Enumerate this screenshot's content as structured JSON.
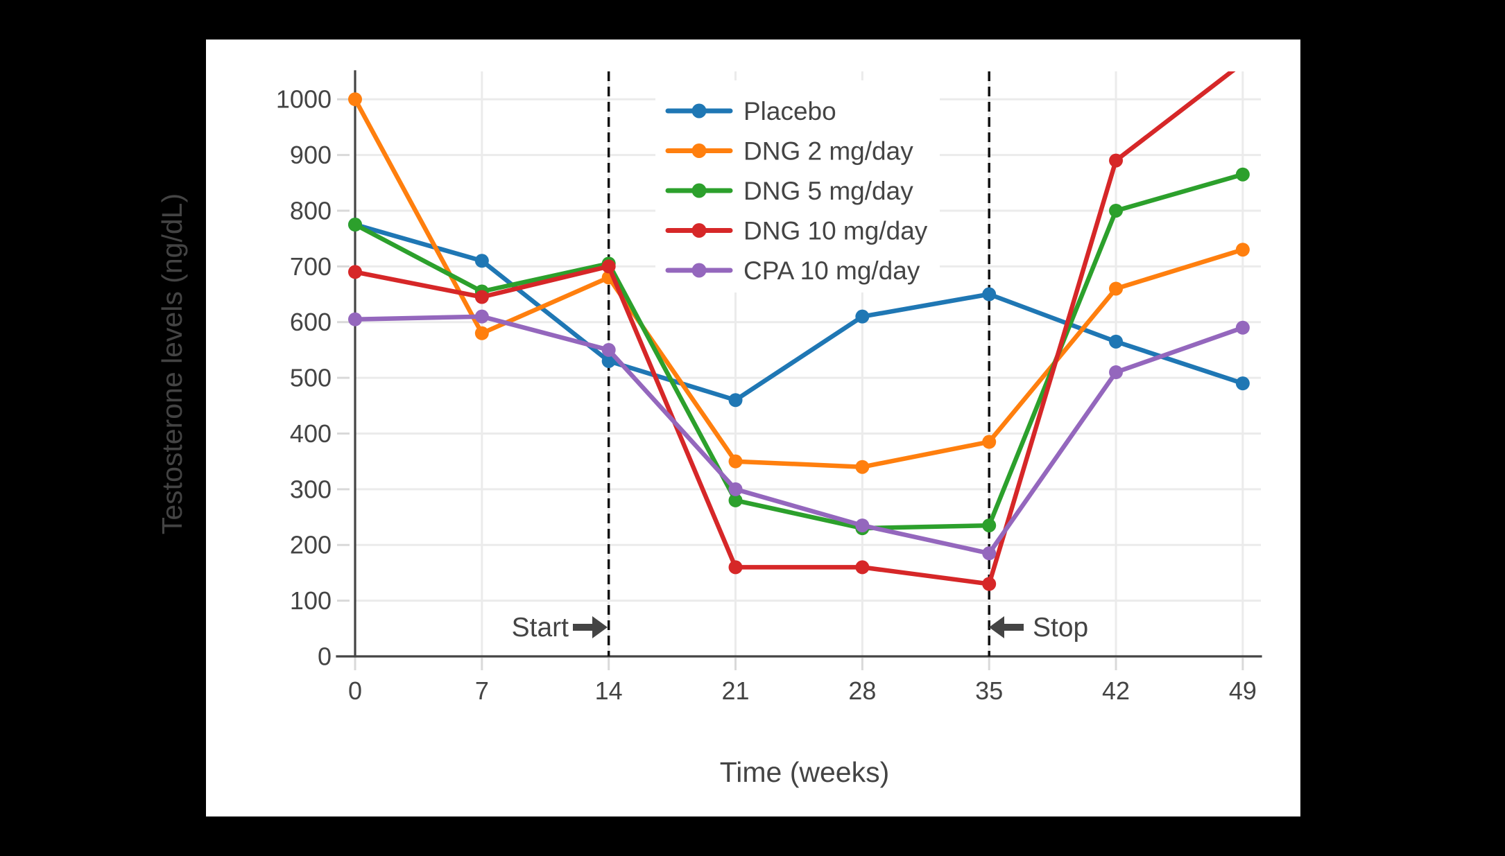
{
  "colors": {
    "background": "#000000",
    "panel": "#ffffff",
    "text": "#444444",
    "grid": "#ebebeb",
    "tick": "#d9d9d9",
    "spine": "#444444",
    "vline": "#111111",
    "annotation": "#444444"
  },
  "chart_data": {
    "type": "line",
    "title": "",
    "xlabel": "Time (weeks)",
    "ylabel": "Testosterone levels (ng/dL)",
    "x": [
      0,
      7,
      14,
      21,
      28,
      35,
      42,
      49
    ],
    "xticks": [
      0,
      7,
      14,
      21,
      28,
      35,
      42,
      49
    ],
    "yticks": [
      0,
      100,
      200,
      300,
      400,
      500,
      600,
      700,
      800,
      900,
      1000
    ],
    "xlim": [
      0,
      50
    ],
    "ylim": [
      0,
      1050
    ],
    "grid": true,
    "legend_position": "inside upper center-left",
    "series": [
      {
        "name": "Placebo",
        "color": "#1f77b4",
        "values": [
          775,
          710,
          530,
          460,
          610,
          650,
          565,
          490
        ]
      },
      {
        "name": "DNG 2 mg/day",
        "color": "#ff7f0e",
        "values": [
          1000,
          580,
          680,
          350,
          340,
          385,
          660,
          730
        ]
      },
      {
        "name": "DNG 5 mg/day",
        "color": "#2ca02c",
        "values": [
          775,
          655,
          705,
          280,
          230,
          235,
          800,
          865
        ]
      },
      {
        "name": "DNG 10 mg/day",
        "color": "#d62728",
        "values": [
          690,
          645,
          700,
          160,
          160,
          130,
          890,
          1065
        ]
      },
      {
        "name": "CPA 10 mg/day",
        "color": "#9467bd",
        "values": [
          605,
          610,
          550,
          300,
          235,
          185,
          510,
          590
        ]
      }
    ],
    "vlines": [
      {
        "x": 14,
        "style": "dashed"
      },
      {
        "x": 35,
        "style": "dashed"
      }
    ],
    "annotations": [
      {
        "label": "Start",
        "x": 14,
        "y": 52,
        "arrow": "right",
        "text_side": "left"
      },
      {
        "label": "Stop",
        "x": 35,
        "y": 52,
        "arrow": "left",
        "text_side": "right"
      }
    ]
  }
}
